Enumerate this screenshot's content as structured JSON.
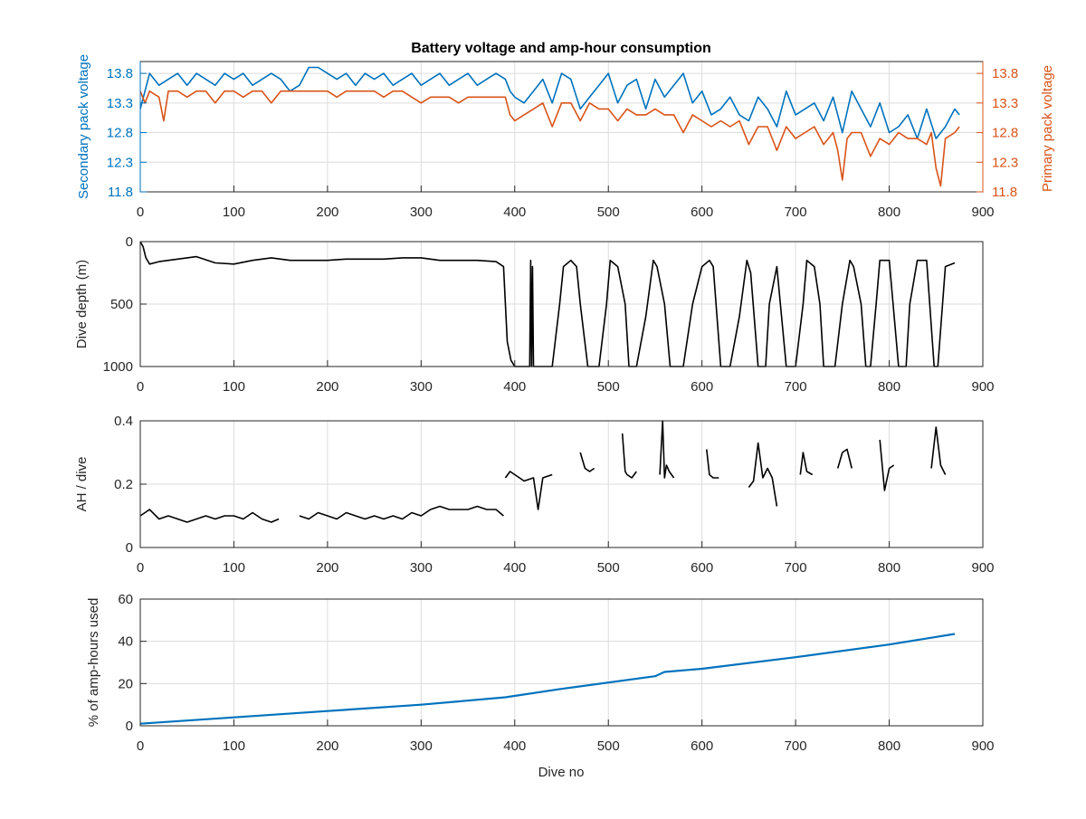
{
  "figure": {
    "title": "Battery voltage and amp-hour consumption",
    "xlabel": "Dive no"
  },
  "colors": {
    "secondary": "#0072BD",
    "primary": "#D95319",
    "depth": "#000000",
    "ah": "#000000",
    "pct": "#0072BD",
    "grid": "#DCDCDC",
    "axis": "#262626"
  },
  "chart_data": [
    {
      "type": "line",
      "title": "Battery voltage and amp-hour consumption",
      "xlim": [
        0,
        900
      ],
      "x_ticks": [
        "0",
        "100",
        "200",
        "300",
        "400",
        "500",
        "600",
        "700",
        "800",
        "900"
      ],
      "ylim": [
        11.8,
        14.0
      ],
      "y_ticks": [
        "11.8",
        "12.3",
        "12.8",
        "13.3",
        "13.8"
      ],
      "ylabel": "Secondary pack voltage",
      "ylabel_right": "Primary pack voltage",
      "y_ticks_right": [
        "11.8",
        "12.3",
        "12.8",
        "13.3",
        "13.8"
      ],
      "grid": true,
      "series": [
        {
          "name": "Secondary pack voltage",
          "axis": "left",
          "x": [
            0,
            5,
            10,
            20,
            30,
            40,
            50,
            60,
            70,
            80,
            90,
            100,
            110,
            120,
            130,
            140,
            150,
            160,
            170,
            180,
            190,
            200,
            210,
            220,
            230,
            240,
            250,
            260,
            270,
            280,
            290,
            300,
            310,
            320,
            330,
            340,
            350,
            360,
            370,
            380,
            390,
            395,
            400,
            410,
            420,
            430,
            440,
            450,
            460,
            470,
            480,
            490,
            500,
            510,
            520,
            530,
            540,
            550,
            560,
            570,
            580,
            590,
            600,
            610,
            620,
            630,
            640,
            650,
            660,
            670,
            680,
            690,
            700,
            710,
            720,
            730,
            740,
            750,
            760,
            770,
            780,
            790,
            800,
            810,
            820,
            830,
            840,
            850,
            860,
            870,
            875
          ],
          "values": [
            13.2,
            13.5,
            13.8,
            13.6,
            13.7,
            13.8,
            13.6,
            13.8,
            13.7,
            13.6,
            13.8,
            13.7,
            13.8,
            13.6,
            13.7,
            13.8,
            13.7,
            13.5,
            13.6,
            13.9,
            13.9,
            13.8,
            13.7,
            13.8,
            13.6,
            13.8,
            13.7,
            13.8,
            13.6,
            13.7,
            13.8,
            13.6,
            13.7,
            13.8,
            13.6,
            13.7,
            13.8,
            13.6,
            13.7,
            13.8,
            13.7,
            13.5,
            13.4,
            13.3,
            13.5,
            13.7,
            13.3,
            13.8,
            13.7,
            13.2,
            13.4,
            13.6,
            13.8,
            13.3,
            13.6,
            13.7,
            13.2,
            13.7,
            13.4,
            13.6,
            13.8,
            13.3,
            13.5,
            13.1,
            13.2,
            13.4,
            13.1,
            13.0,
            13.4,
            13.2,
            12.9,
            13.5,
            13.1,
            13.2,
            13.3,
            13.0,
            13.4,
            12.8,
            13.5,
            13.2,
            12.9,
            13.3,
            12.8,
            12.9,
            13.1,
            12.7,
            13.2,
            12.7,
            12.9,
            13.2,
            13.1
          ]
        },
        {
          "name": "Primary pack voltage",
          "axis": "right",
          "x": [
            0,
            5,
            10,
            20,
            25,
            30,
            40,
            50,
            60,
            70,
            80,
            90,
            100,
            110,
            120,
            130,
            140,
            150,
            160,
            170,
            180,
            190,
            200,
            210,
            220,
            230,
            240,
            250,
            260,
            270,
            280,
            290,
            300,
            310,
            320,
            330,
            340,
            350,
            360,
            370,
            380,
            390,
            395,
            400,
            410,
            420,
            430,
            440,
            450,
            460,
            470,
            480,
            490,
            500,
            510,
            520,
            530,
            540,
            550,
            560,
            570,
            580,
            590,
            600,
            610,
            620,
            630,
            640,
            650,
            660,
            670,
            680,
            690,
            700,
            710,
            720,
            730,
            740,
            745,
            750,
            755,
            760,
            770,
            780,
            790,
            800,
            810,
            820,
            830,
            840,
            845,
            850,
            855,
            860,
            870,
            875
          ],
          "values": [
            13.5,
            13.3,
            13.5,
            13.4,
            13.0,
            13.5,
            13.5,
            13.4,
            13.5,
            13.5,
            13.3,
            13.5,
            13.5,
            13.4,
            13.5,
            13.5,
            13.3,
            13.5,
            13.5,
            13.5,
            13.5,
            13.5,
            13.5,
            13.4,
            13.5,
            13.5,
            13.5,
            13.5,
            13.4,
            13.5,
            13.5,
            13.4,
            13.3,
            13.4,
            13.4,
            13.4,
            13.3,
            13.4,
            13.4,
            13.4,
            13.4,
            13.4,
            13.1,
            13.0,
            13.1,
            13.2,
            13.3,
            12.9,
            13.3,
            13.3,
            13.0,
            13.3,
            13.2,
            13.2,
            13.0,
            13.2,
            13.1,
            13.1,
            13.2,
            13.1,
            13.1,
            12.8,
            13.1,
            13.0,
            12.9,
            13.0,
            12.9,
            13.0,
            12.6,
            12.9,
            12.9,
            12.5,
            12.9,
            12.7,
            12.8,
            12.9,
            12.6,
            12.8,
            12.5,
            12.0,
            12.7,
            12.8,
            12.8,
            12.4,
            12.7,
            12.6,
            12.8,
            12.7,
            12.7,
            12.6,
            12.8,
            12.2,
            11.9,
            12.7,
            12.8,
            12.9
          ]
        }
      ]
    },
    {
      "type": "line",
      "xlim": [
        0,
        900
      ],
      "x_ticks": [
        "0",
        "100",
        "200",
        "300",
        "400",
        "500",
        "600",
        "700",
        "800",
        "900"
      ],
      "ylim": [
        1000,
        0
      ],
      "y_ticks": [
        "0",
        "500",
        "1000"
      ],
      "ylabel": "Dive depth (m)",
      "grid": true,
      "series": [
        {
          "name": "",
          "x": [
            0,
            3,
            6,
            10,
            20,
            40,
            60,
            80,
            100,
            120,
            140,
            160,
            180,
            200,
            220,
            240,
            260,
            280,
            300,
            320,
            340,
            360,
            380,
            388,
            392,
            396,
            400,
            405,
            410,
            416,
            417,
            418,
            419,
            420,
            421,
            440,
            448,
            452,
            460,
            466,
            470,
            478,
            490,
            498,
            502,
            510,
            518,
            522,
            530,
            540,
            548,
            552,
            560,
            566,
            570,
            580,
            590,
            600,
            608,
            612,
            620,
            630,
            640,
            648,
            652,
            660,
            668,
            672,
            680,
            690,
            700,
            708,
            712,
            720,
            726,
            730,
            742,
            750,
            758,
            762,
            770,
            775,
            780,
            786,
            790,
            800,
            810,
            818,
            822,
            830,
            840,
            848,
            852,
            860,
            870
          ],
          "values": [
            0,
            40,
            130,
            180,
            160,
            140,
            120,
            170,
            180,
            150,
            130,
            150,
            150,
            150,
            140,
            140,
            140,
            130,
            130,
            150,
            150,
            150,
            160,
            200,
            800,
            950,
            1000,
            1000,
            1000,
            1000,
            150,
            1000,
            200,
            1000,
            1000,
            1000,
            500,
            200,
            150,
            200,
            500,
            1000,
            1000,
            500,
            150,
            200,
            500,
            1000,
            1000,
            600,
            150,
            200,
            500,
            1000,
            1000,
            1000,
            500,
            200,
            150,
            200,
            1000,
            1000,
            600,
            150,
            250,
            1000,
            1000,
            500,
            200,
            1000,
            1000,
            500,
            150,
            200,
            500,
            1000,
            1000,
            500,
            150,
            200,
            500,
            1000,
            1000,
            500,
            150,
            150,
            1000,
            1000,
            500,
            150,
            150,
            1000,
            1000,
            200,
            170
          ]
        }
      ]
    },
    {
      "type": "line",
      "xlim": [
        0,
        900
      ],
      "x_ticks": [
        "0",
        "100",
        "200",
        "300",
        "400",
        "500",
        "600",
        "700",
        "800",
        "900"
      ],
      "ylim": [
        0,
        0.4
      ],
      "y_ticks": [
        "0",
        "0.2",
        "0.4"
      ],
      "ylabel": "AH / dive",
      "grid": true,
      "series": [
        {
          "name": "",
          "segments": [
            {
              "x": [
                0,
                10,
                20,
                30,
                40,
                50,
                60,
                70,
                80,
                90,
                100,
                110,
                120,
                130,
                140,
                148
              ],
              "values": [
                0.1,
                0.12,
                0.09,
                0.1,
                0.09,
                0.08,
                0.09,
                0.1,
                0.09,
                0.1,
                0.1,
                0.09,
                0.11,
                0.09,
                0.08,
                0.09
              ]
            },
            {
              "x": [
                170,
                180,
                190,
                200,
                210,
                220,
                230,
                240,
                250,
                260,
                270,
                280,
                290,
                300,
                310,
                320,
                330,
                340,
                350,
                360,
                370,
                380,
                388
              ],
              "values": [
                0.1,
                0.09,
                0.11,
                0.1,
                0.09,
                0.11,
                0.1,
                0.09,
                0.1,
                0.09,
                0.1,
                0.09,
                0.11,
                0.1,
                0.12,
                0.13,
                0.12,
                0.12,
                0.12,
                0.13,
                0.12,
                0.12,
                0.1
              ]
            },
            {
              "x": [
                390,
                395,
                400,
                405,
                410,
                420,
                425,
                430,
                440
              ],
              "values": [
                0.22,
                0.24,
                0.23,
                0.22,
                0.21,
                0.22,
                0.12,
                0.22,
                0.23
              ]
            },
            {
              "x": [
                470,
                475,
                480,
                485
              ],
              "values": [
                0.3,
                0.25,
                0.24,
                0.25
              ]
            },
            {
              "x": [
                515,
                518,
                520,
                525,
                530
              ],
              "values": [
                0.36,
                0.24,
                0.23,
                0.22,
                0.24
              ]
            },
            {
              "x": [
                555,
                558,
                560,
                562,
                565,
                570
              ],
              "values": [
                0.23,
                0.4,
                0.22,
                0.26,
                0.24,
                0.22
              ]
            },
            {
              "x": [
                605,
                608,
                612,
                618
              ],
              "values": [
                0.31,
                0.23,
                0.22,
                0.22
              ]
            },
            {
              "x": [
                650,
                655,
                660,
                665,
                670,
                675,
                680
              ],
              "values": [
                0.19,
                0.21,
                0.33,
                0.22,
                0.25,
                0.22,
                0.13
              ]
            },
            {
              "x": [
                705,
                708,
                712,
                718
              ],
              "values": [
                0.23,
                0.3,
                0.24,
                0.23
              ]
            },
            {
              "x": [
                745,
                750,
                755,
                760
              ],
              "values": [
                0.25,
                0.3,
                0.31,
                0.25
              ]
            },
            {
              "x": [
                790,
                795,
                800,
                805
              ],
              "values": [
                0.34,
                0.18,
                0.25,
                0.26
              ]
            },
            {
              "x": [
                845,
                850,
                855,
                860
              ],
              "values": [
                0.25,
                0.38,
                0.26,
                0.23
              ]
            }
          ]
        }
      ]
    },
    {
      "type": "line",
      "xlim": [
        0,
        900
      ],
      "x_ticks": [
        "0",
        "100",
        "200",
        "300",
        "400",
        "500",
        "600",
        "700",
        "800",
        "900"
      ],
      "ylim": [
        0,
        60
      ],
      "y_ticks": [
        "0",
        "20",
        "40",
        "60"
      ],
      "ylabel": "% of amp-hours used",
      "xlabel": "Dive no",
      "grid": true,
      "series": [
        {
          "name": "",
          "x": [
            0,
            100,
            200,
            300,
            390,
            450,
            550,
            560,
            600,
            700,
            800,
            870
          ],
          "values": [
            1,
            4,
            7,
            10,
            13.5,
            17.5,
            23.5,
            25.5,
            27,
            32.5,
            38.5,
            43.5
          ]
        }
      ]
    }
  ]
}
